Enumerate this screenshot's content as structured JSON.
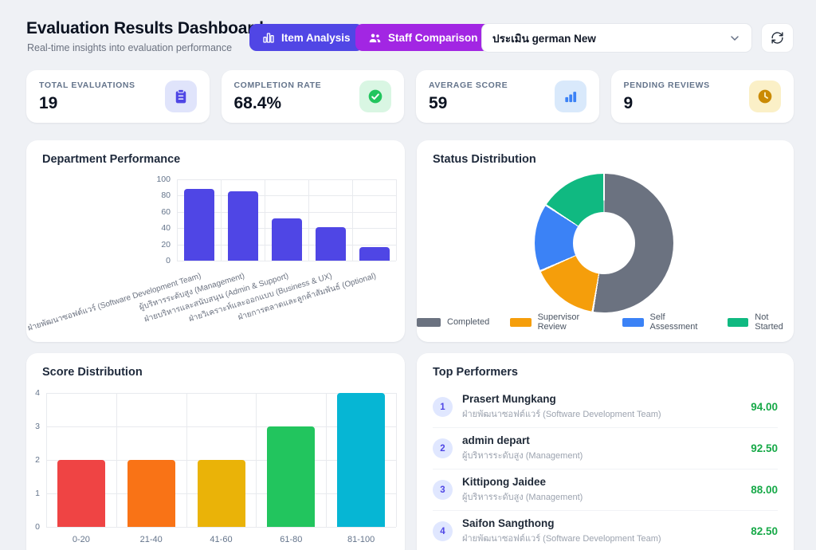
{
  "header": {
    "title": "Evaluation Results Dashboard",
    "subtitle": "Real-time insights into evaluation performance",
    "buttons": [
      {
        "label": "Item Analysis",
        "icon": "bar-chart-icon",
        "color": "#5046e5"
      },
      {
        "label": "Staff Comparison",
        "icon": "people-icon",
        "color": "#a226e3"
      }
    ],
    "evaluation_select": {
      "value": "ประเมิน german New",
      "icon": "chevron-down-icon"
    },
    "refresh": {
      "icon": "refresh-icon"
    }
  },
  "stats": [
    {
      "label": "TOTAL EVALUATIONS",
      "value": "19",
      "icon": "clipboard-icon",
      "icon_color": "#4f46e5",
      "icon_bg": "#e0e4fb"
    },
    {
      "label": "COMPLETION RATE",
      "value": "68.4%",
      "icon": "check-circle-icon",
      "icon_color": "#22c55e",
      "icon_bg": "#d9f6e3"
    },
    {
      "label": "AVERAGE SCORE",
      "value": "59",
      "icon": "bar-chart-icon",
      "icon_color": "#3b82f6",
      "icon_bg": "#d9e9fb"
    },
    {
      "label": "PENDING REVIEWS",
      "value": "9",
      "icon": "clock-icon",
      "icon_color": "#ca8a04",
      "icon_bg": "#fbf0c7"
    }
  ],
  "chart_data": [
    {
      "id": "department_performance",
      "type": "bar",
      "title": "Department Performance",
      "categories": [
        "ฝ่ายพัฒนาซอฟต์แวร์ (Software Development Team)",
        "ผู้บริหารระดับสูง (Management)",
        "ฝ่ายบริหารและสนับสนุน (Admin & Support)",
        "ฝ่ายวิเคราะห์และออกแบบ (Business & UX)",
        "ฝ่ายการตลาดและลูกค้าสัมพันธ์ (Optional)"
      ],
      "values": [
        88,
        85,
        52,
        41,
        17
      ],
      "bar_color": "#4f46e5",
      "ylim": [
        0,
        100
      ],
      "yticks": [
        0,
        20,
        40,
        60,
        80,
        100
      ],
      "grid": true,
      "legend_position": "none"
    },
    {
      "id": "status_distribution",
      "type": "pie",
      "title": "Status Distribution",
      "labels": [
        "Completed",
        "Supervisor Review",
        "Self Assessment",
        "Not Started"
      ],
      "values": [
        10,
        3,
        3,
        3
      ],
      "colors": [
        "#6b7280",
        "#f59e0b",
        "#3b82f6",
        "#10b981"
      ],
      "donut": true,
      "legend_position": "bottom"
    },
    {
      "id": "score_distribution",
      "type": "bar",
      "title": "Score Distribution",
      "categories": [
        "0-20",
        "21-40",
        "41-60",
        "61-80",
        "81-100"
      ],
      "values": [
        2,
        2,
        2,
        3,
        4
      ],
      "colors": [
        "#ef4444",
        "#f97316",
        "#eab308",
        "#22c55e",
        "#06b6d4"
      ],
      "ylim": [
        0,
        4
      ],
      "yticks": [
        0,
        1,
        2,
        3,
        4
      ],
      "grid": true,
      "legend_position": "none"
    }
  ],
  "top_performers": {
    "title": "Top Performers",
    "score_color": "#17a948",
    "items": [
      {
        "rank": "1",
        "name": "Prasert Mungkang",
        "department": "ฝ่ายพัฒนาซอฟต์แวร์ (Software Development Team)",
        "score": "94.00"
      },
      {
        "rank": "2",
        "name": "admin depart",
        "department": "ผู้บริหารระดับสูง (Management)",
        "score": "92.50"
      },
      {
        "rank": "3",
        "name": "Kittipong Jaidee",
        "department": "ผู้บริหารระดับสูง (Management)",
        "score": "88.00"
      },
      {
        "rank": "4",
        "name": "Saifon Sangthong",
        "department": "ฝ่ายพัฒนาซอฟต์แวร์ (Software Development Team)",
        "score": "82.50"
      }
    ]
  }
}
